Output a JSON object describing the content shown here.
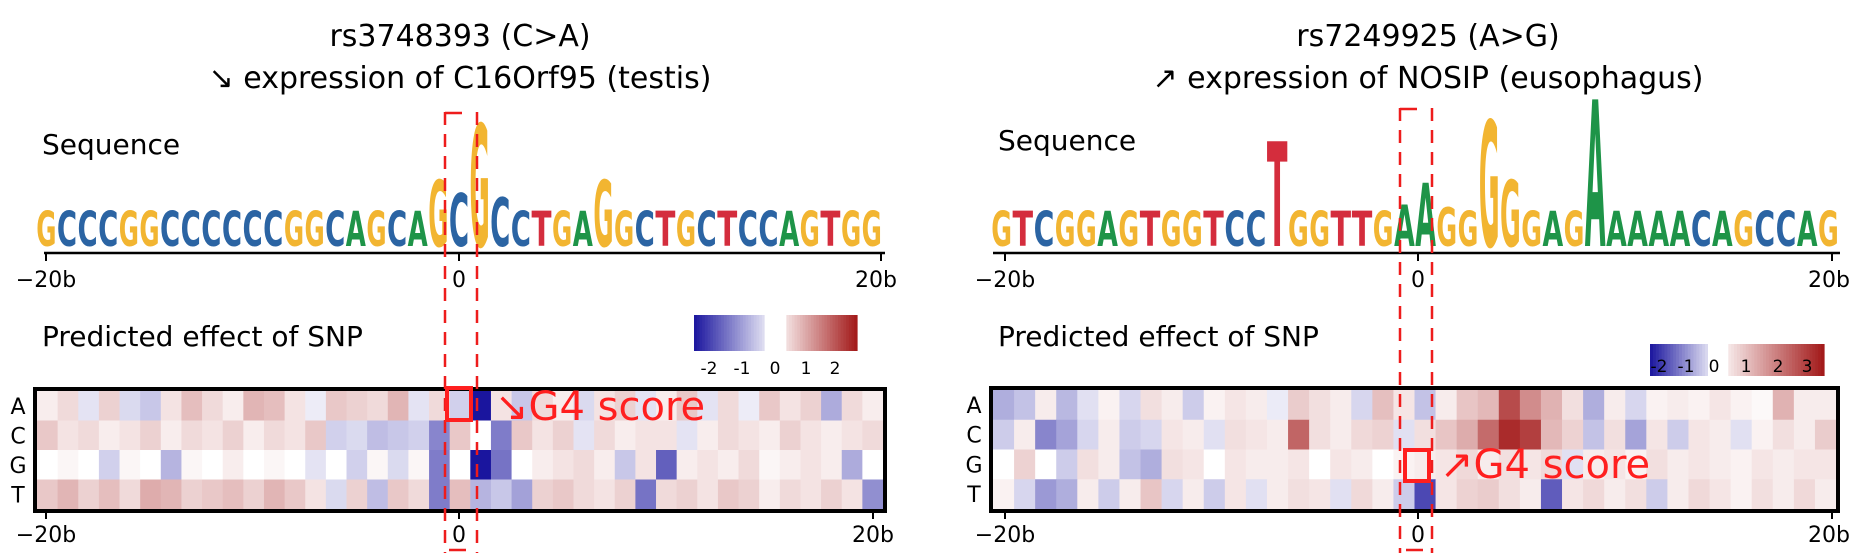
{
  "panels": [
    {
      "id": "left",
      "title_line1": "rs3748393 (C>A)",
      "title_line2": "↘ expression of C16Orf95 (testis)",
      "sequence_label": "Sequence",
      "sequence": "GCCCGGCCCCCCGGCAGCAGCGCCTGAGGCTGCTCCAGTGG",
      "letter_heights": [
        1,
        1,
        1,
        1,
        1,
        1,
        1,
        1,
        1,
        1,
        1,
        1,
        1,
        1,
        1,
        1,
        1,
        1,
        1,
        1.9,
        1.5,
        3.5,
        1.4,
        1,
        1,
        1,
        1,
        1.9,
        1,
        1,
        1,
        1,
        1,
        1,
        1,
        1,
        1,
        1,
        1,
        1,
        1
      ],
      "axis_ticks": [
        "−20b",
        "0",
        "20b"
      ],
      "heatmap_label": "Predicted effect of SNP",
      "colorbar_ticks": [
        "-2",
        "-1",
        "0",
        "1",
        "2"
      ],
      "colorbar_range": [
        -2.5,
        2.5
      ],
      "row_labels": [
        "A",
        "C",
        "G",
        "T"
      ],
      "annotation": "↘G4 score",
      "heatmap": [
        [
          0.2,
          0.4,
          -0.3,
          0.5,
          -0.4,
          -0.6,
          0.3,
          0.7,
          0.4,
          0.2,
          0.8,
          0.7,
          0.3,
          -0.2,
          0.6,
          0.5,
          0.4,
          0.8,
          -0.3,
          0.4,
          -0.5,
          -2.5,
          0.3,
          -0.6,
          0.4,
          0.2,
          -0.4,
          0.3,
          0.5,
          -0.3,
          0.2,
          0.6,
          -0.3,
          0.4,
          -0.2,
          0.6,
          0.3,
          0.5,
          -0.9,
          0.4,
          0.2
        ],
        [
          0.6,
          0.3,
          0.4,
          0.2,
          0.3,
          0.5,
          0.2,
          0.4,
          0.3,
          0.5,
          0.2,
          0.4,
          0.3,
          0.6,
          -0.5,
          -0.4,
          -0.7,
          -0.6,
          -0.5,
          -1.3,
          0.6,
          0.0,
          -1.4,
          0.6,
          0.3,
          0.5,
          -0.3,
          0.4,
          0.2,
          0.3,
          0.3,
          -0.3,
          0.2,
          0.4,
          0.3,
          0.2,
          0.5,
          0.3,
          0.2,
          0.3,
          0.4
        ],
        [
          0.0,
          0.1,
          0.0,
          -0.5,
          0.1,
          0.0,
          -0.8,
          0.1,
          0.0,
          0.2,
          0.0,
          0.1,
          0.0,
          -0.3,
          0.0,
          -0.5,
          0.1,
          -0.4,
          0.1,
          -1.4,
          0.0,
          -3.0,
          -1.5,
          0.0,
          0.2,
          0.3,
          0.4,
          0.2,
          -0.6,
          0.3,
          -1.7,
          0.2,
          0.3,
          0.2,
          0.4,
          0.1,
          0.2,
          0.3,
          0.2,
          -0.9,
          0.0
        ],
        [
          0.6,
          0.8,
          0.5,
          0.7,
          0.4,
          0.9,
          0.8,
          0.5,
          0.6,
          0.7,
          0.5,
          0.8,
          0.6,
          0.3,
          -0.4,
          0.5,
          -0.7,
          0.6,
          0.4,
          -1.4,
          0.7,
          -0.8,
          -0.6,
          -1.0,
          0.5,
          0.6,
          0.4,
          0.3,
          0.5,
          -1.5,
          0.4,
          0.5,
          0.3,
          0.6,
          0.5,
          0.2,
          0.4,
          0.3,
          0.5,
          0.3,
          -1.2
        ]
      ]
    },
    {
      "id": "right",
      "title_line1": "rs7249925 (A>G)",
      "title_line2": "↗ expression of NOSIP (eusophagus)",
      "sequence_label": "Sequence",
      "sequence": "GTCGGAGTGGTCCTGGTTGAAGGGGGAGAAAAACAGCCAG",
      "letter_heights": [
        1,
        1,
        1,
        1,
        1,
        1,
        1,
        1,
        1,
        1,
        1,
        1,
        1,
        3,
        1,
        1,
        1,
        1,
        1,
        1.2,
        1.8,
        1.1,
        1,
        3.6,
        1.9,
        1,
        1,
        1,
        4.2,
        1,
        1,
        1,
        1,
        1,
        1,
        1,
        1,
        1,
        1,
        1
      ],
      "axis_ticks": [
        "−20b",
        "0",
        "20b"
      ],
      "heatmap_label": "Predicted effect of SNP",
      "colorbar_ticks": [
        "-2",
        "-1",
        "0",
        "1",
        "2",
        "3"
      ],
      "colorbar_range": [
        -2.3,
        3.6
      ],
      "row_labels": [
        "A",
        "C",
        "G",
        "T"
      ],
      "annotation": "↗G4 score",
      "heatmap": [
        [
          -0.8,
          -0.6,
          0.3,
          -0.7,
          -0.3,
          0.2,
          -0.4,
          0.5,
          0.3,
          -0.5,
          0.2,
          0.4,
          0.3,
          -0.2,
          0.8,
          0.5,
          0.3,
          -0.4,
          1.0,
          0.4,
          -0.6,
          0.3,
          0.9,
          1.1,
          2.8,
          1.8,
          1.2,
          0.5,
          -0.8,
          0.3,
          -0.4,
          0.2,
          0.3,
          0.2,
          0.4,
          0.2,
          0.1,
          1.2,
          0.3,
          0.3
        ],
        [
          -0.5,
          0.3,
          -1.2,
          -0.9,
          -0.4,
          0.3,
          -0.5,
          -0.4,
          0.4,
          0.3,
          -0.3,
          0.5,
          0.4,
          0.3,
          2.4,
          0.5,
          0.3,
          0.6,
          0.7,
          -0.3,
          0.5,
          0.9,
          1.3,
          2.3,
          3.3,
          3.0,
          1.1,
          0.7,
          -0.6,
          0.5,
          -0.9,
          0.4,
          -0.5,
          0.4,
          0.3,
          -0.3,
          0.2,
          0.5,
          0.3,
          0.8
        ],
        [
          0.0,
          0.7,
          0.0,
          -0.5,
          0.5,
          0.3,
          -0.6,
          -0.8,
          0.5,
          0.4,
          0.0,
          0.4,
          0.3,
          0.3,
          0.4,
          0.0,
          0.4,
          0.3,
          0.0,
          0.2,
          0.3,
          0.4,
          0.6,
          0.3,
          0.5,
          0.4,
          0.6,
          -0.3,
          0.3,
          0.4,
          0.2,
          0.5,
          0.3,
          0.4,
          0.3,
          0.2,
          0.4,
          0.3,
          0.4,
          0.4
        ],
        [
          0.2,
          -0.4,
          -1.0,
          -0.8,
          0.3,
          -0.5,
          0.3,
          0.9,
          -0.4,
          0.3,
          -0.5,
          0.4,
          -0.3,
          0.3,
          0.5,
          0.4,
          -0.3,
          0.6,
          0.3,
          -0.5,
          -1.8,
          0.4,
          0.7,
          0.8,
          0.5,
          0.3,
          -1.6,
          0.4,
          0.6,
          0.3,
          0.5,
          -0.5,
          0.3,
          0.6,
          0.4,
          0.2,
          0.5,
          0.3,
          0.6,
          0.3
        ]
      ]
    }
  ],
  "colors": {
    "A": "#1e9448",
    "C": "#2b64a3",
    "G": "#f2b531",
    "T": "#d42d3d",
    "highlight": "#ff1f1f",
    "negative": "#1a159e",
    "positive": "#a21818"
  }
}
